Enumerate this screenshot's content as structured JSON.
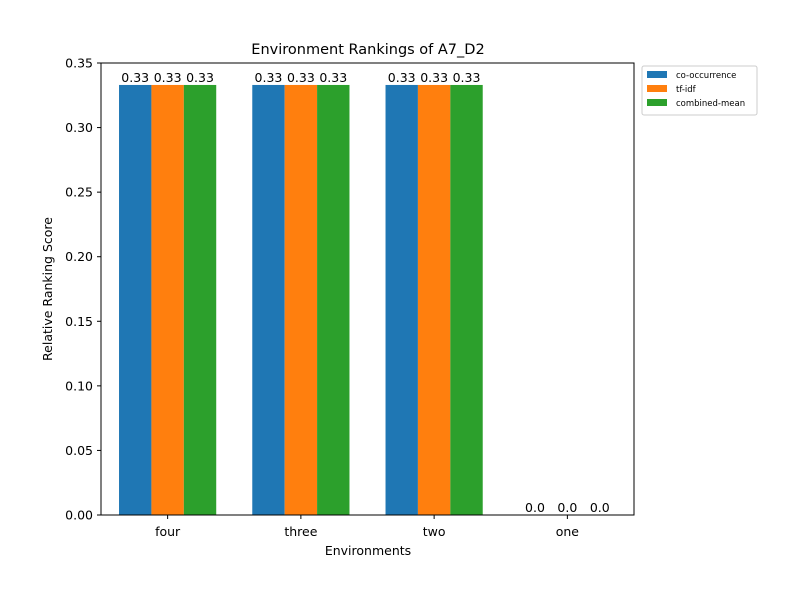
{
  "chart_data": {
    "type": "bar",
    "title": "Environment Rankings of A7_D2",
    "xlabel": "Environments",
    "ylabel": "Relative Ranking Score",
    "categories": [
      "four",
      "three",
      "two",
      "one"
    ],
    "ylim": [
      0,
      0.35
    ],
    "yticks": [
      "0.00",
      "0.05",
      "0.10",
      "0.15",
      "0.20",
      "0.25",
      "0.30",
      "0.35"
    ],
    "series": [
      {
        "name": "co-occurrence",
        "color": "#1f77b4",
        "values": [
          0.333,
          0.333,
          0.333,
          0.0
        ],
        "labels": [
          "0.33",
          "0.33",
          "0.33",
          "0.0"
        ]
      },
      {
        "name": "tf-idf",
        "color": "#ff7f0e",
        "values": [
          0.333,
          0.333,
          0.333,
          0.0
        ],
        "labels": [
          "0.33",
          "0.33",
          "0.33",
          "0.0"
        ]
      },
      {
        "name": "combined-mean",
        "color": "#2ca02c",
        "values": [
          0.333,
          0.333,
          0.333,
          0.0
        ],
        "labels": [
          "0.33",
          "0.33",
          "0.33",
          "0.0"
        ]
      }
    ],
    "grid": false,
    "legend_position": "outside-top-right"
  }
}
